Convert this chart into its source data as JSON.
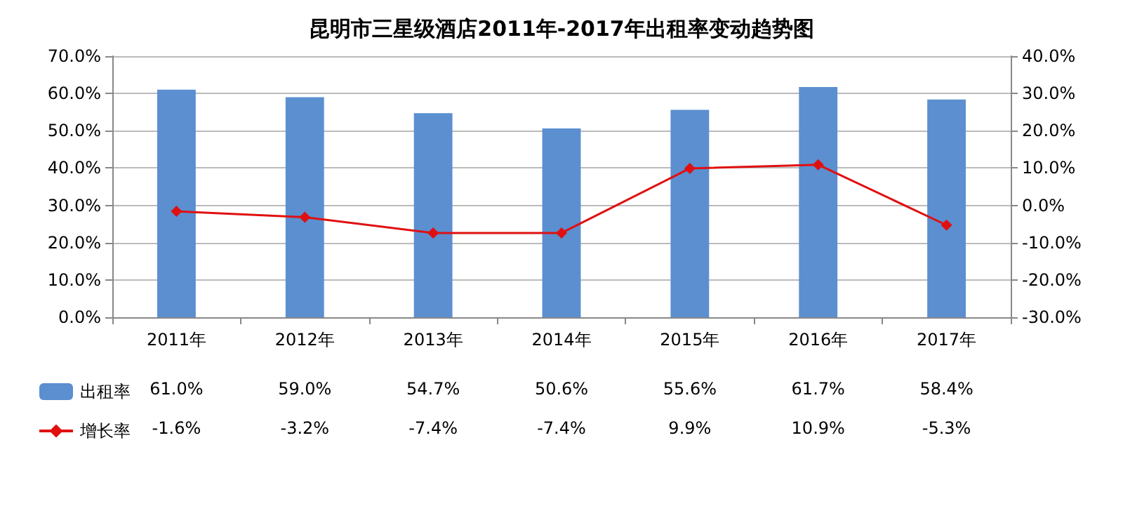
{
  "chart_data": {
    "type": "bar",
    "title": "昆明市三星级酒店2011年-2017年出租率变动趋势图",
    "categories": [
      "2011年",
      "2012年",
      "2013年",
      "2014年",
      "2015年",
      "2016年",
      "2017年"
    ],
    "series": [
      {
        "name": "出租率",
        "color": "#5b8fd0",
        "values": [
          61.0,
          59.0,
          54.7,
          50.6,
          55.6,
          61.7,
          58.4
        ],
        "value_labels": [
          "61.0%",
          "59.0%",
          "54.7%",
          "50.6%",
          "55.6%",
          "61.7%",
          "58.4%"
        ]
      },
      {
        "name": "增长率",
        "type": "line",
        "axis": "y2",
        "color": "#e01010",
        "marker": "diamond",
        "values": [
          -1.6,
          -3.2,
          -7.4,
          -7.4,
          9.9,
          10.9,
          -5.3
        ],
        "value_labels": [
          "-1.6%",
          "-3.2%",
          "-7.4%",
          "-7.4%",
          "9.9%",
          "10.9%",
          "-5.3%"
        ]
      }
    ],
    "ylim": [
      0,
      70
    ],
    "yticks": [
      {
        "value": 0,
        "label": "0.0%"
      },
      {
        "value": 10,
        "label": "10.0%"
      },
      {
        "value": 20,
        "label": "20.0%"
      },
      {
        "value": 30,
        "label": "30.0%"
      },
      {
        "value": 40,
        "label": "40.0%"
      },
      {
        "value": 50,
        "label": "50.0%"
      },
      {
        "value": 60,
        "label": "60.0%"
      },
      {
        "value": 70,
        "label": "70.0%"
      }
    ],
    "y2lim": [
      -30,
      40
    ],
    "y2ticks": [
      {
        "value": -30,
        "label": "-30.0%"
      },
      {
        "value": -20,
        "label": "-20.0%"
      },
      {
        "value": -10,
        "label": "-10.0%"
      },
      {
        "value": 0,
        "label": "0.0%"
      },
      {
        "value": 10,
        "label": "10.0%"
      },
      {
        "value": 20,
        "label": "20.0%"
      },
      {
        "value": 30,
        "label": "30.0%"
      },
      {
        "value": 40,
        "label": "40.0%"
      }
    ],
    "grid": "y",
    "legend": "bottom left"
  }
}
